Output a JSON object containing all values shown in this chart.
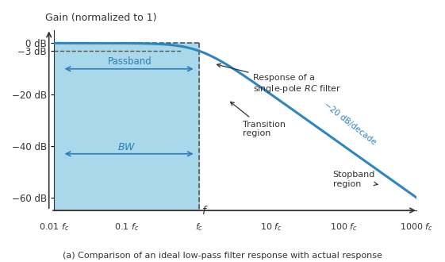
{
  "title": "Gain (normalized to 1)",
  "xlabel": "f",
  "ylabel": "",
  "caption": "(a) Comparison of an ideal low-pass filter response with actual response",
  "yticks_labels": [
    "0 dB",
    "–3 dB",
    "–20 dB",
    "–40 dB",
    "–60 dB"
  ],
  "yticks_values": [
    0,
    -3,
    -20,
    -40,
    -60
  ],
  "xticks_labels": [
    "0.01 fₙ",
    "0.1 fₙ",
    "fₙ",
    "10 fₙ",
    "100 fₙ",
    "1000 fₙ"
  ],
  "xticks_log": [
    0.01,
    0.1,
    1.0,
    10.0,
    100.0,
    1000.0
  ],
  "xmin_log": 0.01,
  "xmax_log": 1000.0,
  "ymin": -65,
  "ymax": 5,
  "passband_fill_color": "#a8d8ea",
  "line_color": "#2e86c1",
  "dashed_color": "#555555",
  "arrow_color": "#222222",
  "annotation_color": "#555555",
  "passband_text_color": "#2e7fb8",
  "bw_text_color": "#2e7fb8",
  "slope_text_color": "#2e86c1",
  "background_color": "#ffffff",
  "fig_width": 5.61,
  "fig_height": 3.3,
  "dpi": 100
}
